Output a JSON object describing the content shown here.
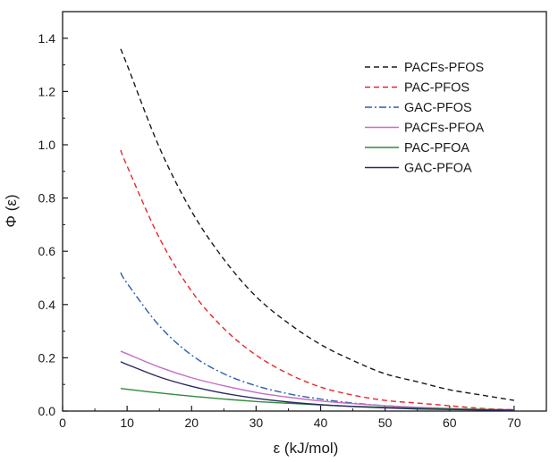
{
  "chart_data": {
    "type": "line",
    "title": "",
    "xlabel": "ε (kJ/mol)",
    "ylabel": "Φ (ε)",
    "xlim": [
      0,
      75
    ],
    "ylim": [
      0.0,
      1.5
    ],
    "x_ticks": [
      0,
      10,
      20,
      30,
      40,
      50,
      60,
      70
    ],
    "y_ticks": [
      "0.0",
      "0.2",
      "0.4",
      "0.6",
      "0.8",
      "1.0",
      "1.2",
      "1.4"
    ],
    "grid": false,
    "legend_position": "top-right",
    "series": [
      {
        "name": "PACFs-PFOS",
        "color": "#1a1a1a",
        "dash": "dashed",
        "x": [
          9,
          10,
          15,
          20,
          25,
          30,
          35,
          40,
          45,
          50,
          55,
          60,
          65,
          70
        ],
        "y": [
          1.36,
          1.3,
          0.99,
          0.75,
          0.57,
          0.43,
          0.33,
          0.25,
          0.19,
          0.14,
          0.11,
          0.08,
          0.06,
          0.04
        ]
      },
      {
        "name": "PAC-PFOS",
        "color": "#e8262a",
        "dash": "dashed",
        "x": [
          9,
          10,
          15,
          20,
          25,
          30,
          35,
          40,
          45,
          50,
          55,
          60,
          65,
          70
        ],
        "y": [
          0.98,
          0.92,
          0.65,
          0.45,
          0.31,
          0.21,
          0.14,
          0.09,
          0.06,
          0.04,
          0.03,
          0.02,
          0.01,
          0.005
        ]
      },
      {
        "name": "GAC-PFOS",
        "color": "#2a5fb0",
        "dash": "dashdot",
        "x": [
          9,
          10,
          15,
          20,
          25,
          30,
          35,
          40,
          45,
          50,
          55,
          60,
          65,
          70
        ],
        "y": [
          0.52,
          0.48,
          0.32,
          0.21,
          0.14,
          0.095,
          0.065,
          0.045,
          0.03,
          0.02,
          0.013,
          0.008,
          0.005,
          0.003
        ]
      },
      {
        "name": "PACFs-PFOA",
        "color": "#c46ec4",
        "dash": "solid",
        "x": [
          9,
          10,
          15,
          20,
          25,
          30,
          35,
          40,
          45,
          50,
          55,
          60,
          65,
          70
        ],
        "y": [
          0.225,
          0.215,
          0.165,
          0.125,
          0.095,
          0.07,
          0.052,
          0.038,
          0.028,
          0.02,
          0.014,
          0.01,
          0.007,
          0.005
        ]
      },
      {
        "name": "PAC-PFOA",
        "color": "#2e8b3a",
        "dash": "solid",
        "x": [
          9,
          10,
          15,
          20,
          25,
          30,
          35,
          40,
          45,
          50,
          55,
          60,
          65,
          70
        ],
        "y": [
          0.085,
          0.082,
          0.068,
          0.056,
          0.045,
          0.036,
          0.029,
          0.023,
          0.018,
          0.014,
          0.011,
          0.008,
          0.006,
          0.004
        ]
      },
      {
        "name": "GAC-PFOA",
        "color": "#2b2860",
        "dash": "solid",
        "x": [
          9,
          10,
          15,
          20,
          25,
          30,
          35,
          40,
          45,
          50,
          55,
          60,
          65,
          70
        ],
        "y": [
          0.185,
          0.175,
          0.128,
          0.093,
          0.067,
          0.048,
          0.034,
          0.024,
          0.017,
          0.012,
          0.008,
          0.006,
          0.004,
          0.003
        ]
      }
    ]
  }
}
